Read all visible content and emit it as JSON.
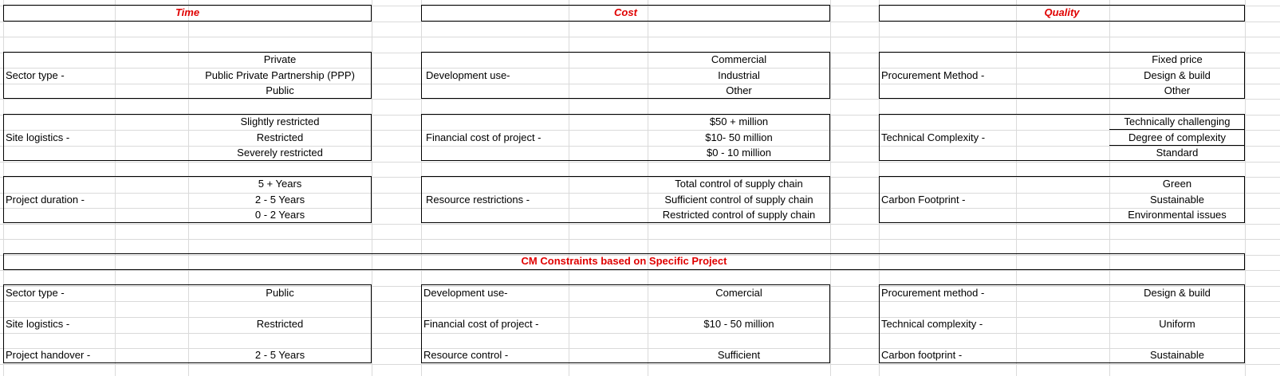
{
  "headers": {
    "time": "Time",
    "cost": "Cost",
    "quality": "Quality",
    "cm": "CM Constraints based on Specific Project"
  },
  "time": {
    "sector_label": "Sector type -",
    "sector_opts": [
      "Private",
      "Public Private Partnership (PPP)",
      "Public"
    ],
    "site_label": "Site logistics -",
    "site_opts": [
      "Slightly restricted",
      "Restricted",
      "Severely restricted"
    ],
    "duration_label": "Project duration -",
    "duration_opts": [
      "5 + Years",
      "2 - 5 Years",
      "0 - 2 Years"
    ]
  },
  "cost": {
    "dev_label": "Development use-",
    "dev_opts": [
      "Commercial",
      "Industrial",
      "Other"
    ],
    "fin_label": "Financial cost of project -",
    "fin_opts": [
      "$50 + million",
      "$10- 50 million",
      "$0 - 10 million"
    ],
    "res_label": "Resource restrictions -",
    "res_opts": [
      "Total control of supply chain",
      "Sufficient control of supply chain",
      "Restricted control of supply chain"
    ]
  },
  "quality": {
    "proc_label": "Procurement Method -",
    "proc_opts": [
      "Fixed price",
      "Design & build",
      "Other"
    ],
    "tech_label": "Technical  Complexity -",
    "tech_opts": [
      "Technically challenging",
      "Degree of complexity",
      "Standard"
    ],
    "carbon_label": "Carbon Footprint -",
    "carbon_opts": [
      "Green",
      "Sustainable",
      "Environmental issues"
    ]
  },
  "specific": {
    "time": [
      {
        "label": "Sector type  -",
        "value": "Public"
      },
      {
        "label": "Site logistics -",
        "value": "Restricted"
      },
      {
        "label": "Project handover -",
        "value": "2 - 5 Years"
      }
    ],
    "cost": [
      {
        "label": "Development use-",
        "value": "Comercial"
      },
      {
        "label": "Financial cost of project -",
        "value": "$10 - 50 million"
      },
      {
        "label": "Resource control -",
        "value": "Sufficient"
      }
    ],
    "quality": [
      {
        "label": "Procurement method -",
        "value": "Design & build"
      },
      {
        "label": "Technical complexity -",
        "value": "Uniform"
      },
      {
        "label": "Carbon footprint -",
        "value": "Sustainable"
      }
    ]
  }
}
